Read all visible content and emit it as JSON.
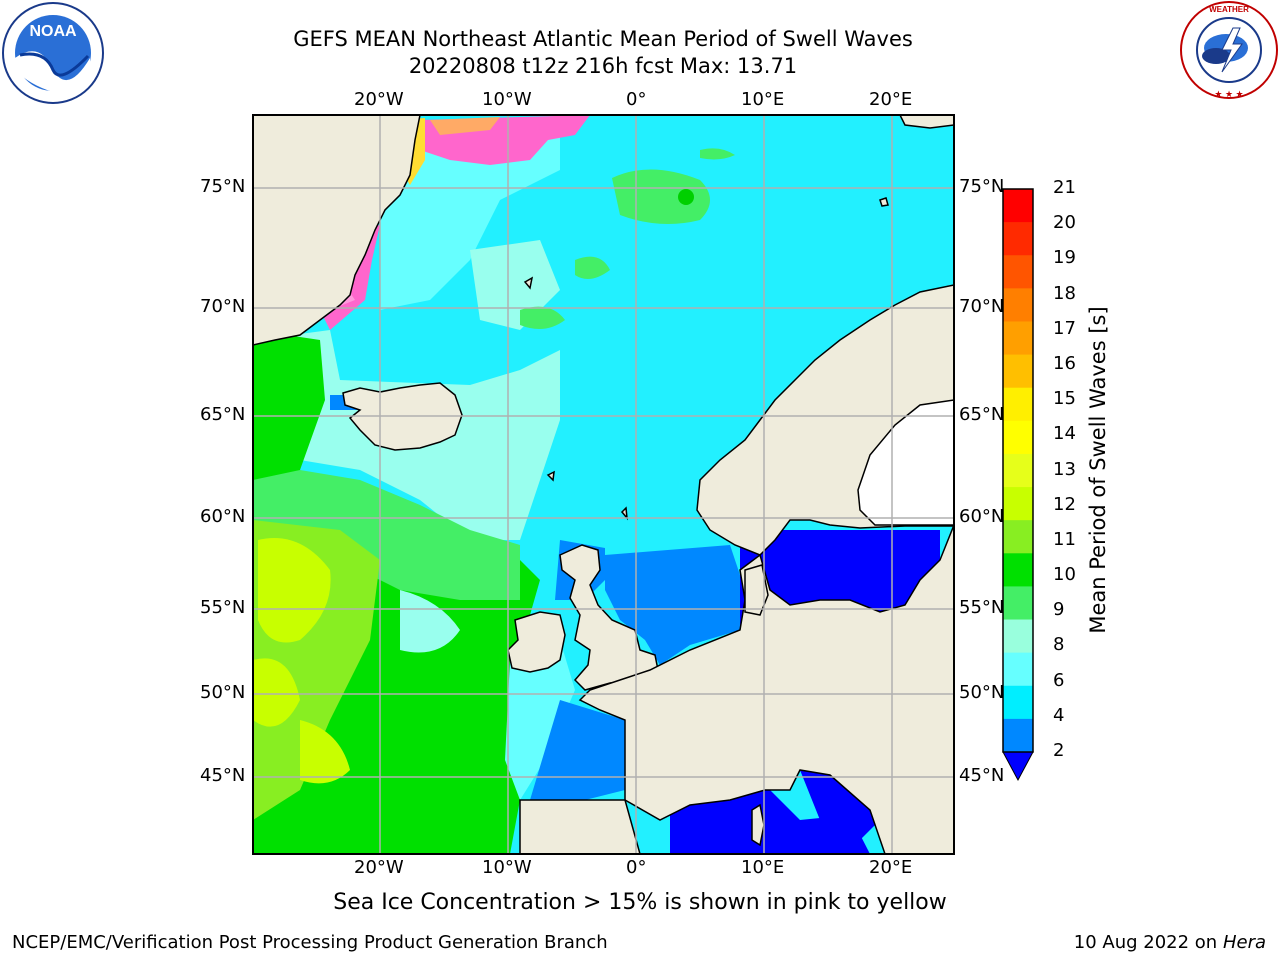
{
  "title": {
    "line1": "GEFS MEAN Northeast Atlantic Mean Period of Swell Waves",
    "line2": "20220808 t12z 216h fcst   Max: 13.71"
  },
  "map": {
    "lon_labels": [
      "20°W",
      "10°W",
      "0°",
      "10°E",
      "20°E"
    ],
    "lat_labels": [
      "75°N",
      "70°N",
      "65°N",
      "60°N",
      "55°N",
      "50°N",
      "45°N"
    ],
    "land_color": "#efecdc",
    "ice_note": "Sea Ice Concentration > 15% is shown in pink to yellow"
  },
  "colorbar": {
    "title": "Mean Period of Swell Waves [s]",
    "ticks": [
      "21",
      "20",
      "19",
      "18",
      "17",
      "16",
      "15",
      "14",
      "13",
      "12",
      "11",
      "10",
      "9",
      "8",
      "6",
      "4",
      "2"
    ],
    "colors_top_to_bottom": [
      "#ff0000",
      "#ff2a00",
      "#ff5500",
      "#ff7f00",
      "#ff9f00",
      "#ffbf00",
      "#ffef00",
      "#ffff00",
      "#e6ff1a",
      "#c8ff00",
      "#88ee22",
      "#00e000",
      "#44ee66",
      "#99ffdd",
      "#66ffff",
      "#00eeff",
      "#0088ff"
    ],
    "under_color": "#0000ff"
  },
  "footer": {
    "left": "NCEP/EMC/Verification Post Processing Product Generation Branch",
    "date": "10 Aug 2022 on",
    "host": "Hera"
  },
  "logos": {
    "left": "NOAA",
    "right": "NATIONAL WEATHER SERVICE"
  }
}
